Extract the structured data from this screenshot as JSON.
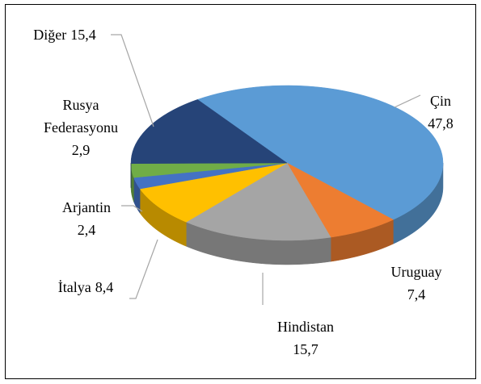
{
  "chart_data": {
    "type": "pie",
    "categories": [
      "Çin",
      "Uruguay",
      "Hindistan",
      "İtalya",
      "Arjantin",
      "Rusya Federasyonu",
      "Diğer"
    ],
    "values": [
      47.8,
      7.4,
      15.7,
      8.4,
      2.4,
      2.9,
      15.4
    ],
    "value_labels": [
      "47,8",
      "7,4",
      "15,7",
      "8,4",
      "2,4",
      "2,9",
      "15,4"
    ],
    "colors": [
      "#5b9bd5",
      "#ed7d31",
      "#a5a5a5",
      "#ffc000",
      "#4472c4",
      "#70ad47",
      "#264478"
    ],
    "three_d": true
  }
}
